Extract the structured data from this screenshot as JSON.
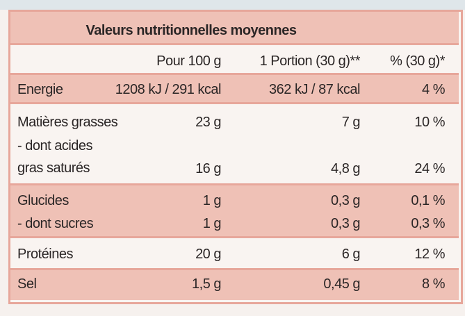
{
  "table": {
    "title": "Valeurs nutritionnelles moyennes",
    "headers": [
      "Pour 100 g",
      "1 Portion (30 g)**",
      "% (30 g)*"
    ],
    "rows": [
      [
        "Energie",
        "1208 kJ / 291 kcal",
        "362 kJ / 87 kcal",
        "4 %"
      ],
      [
        "Matières grasses",
        "23 g",
        "7 g",
        "10 %"
      ],
      [
        "- dont acides\ngras saturés",
        "16 g",
        "4,8 g",
        "24 %"
      ],
      [
        "Glucides",
        "1 g",
        "0,3 g",
        "0,1 %"
      ],
      [
        "- dont sucres",
        "1 g",
        "0,3 g",
        "0,3 %"
      ],
      [
        "Protéines",
        "20 g",
        "6 g",
        "12 %"
      ],
      [
        "Sel",
        "1,5 g",
        "0,45 g",
        "8 %"
      ]
    ]
  }
}
